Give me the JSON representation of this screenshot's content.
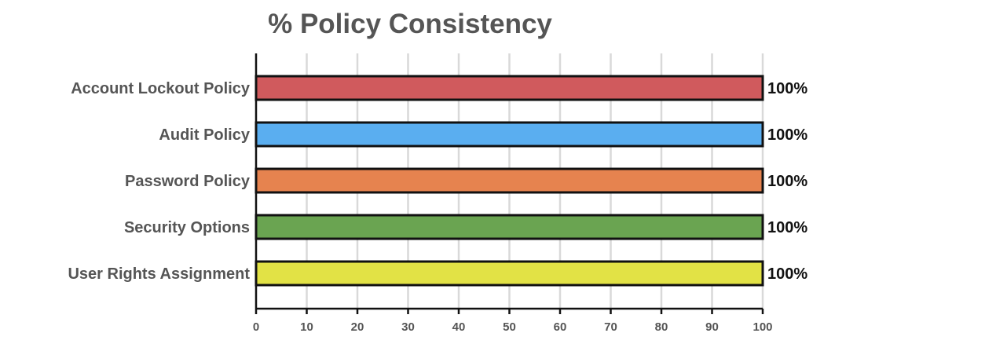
{
  "chart_data": {
    "type": "bar",
    "orientation": "horizontal",
    "title": "% Policy Consistency",
    "xlabel": "",
    "ylabel": "",
    "xlim": [
      0,
      100
    ],
    "x_ticks": [
      0,
      10,
      20,
      30,
      40,
      50,
      60,
      70,
      80,
      90,
      100
    ],
    "grid": true,
    "categories": [
      "Account Lockout Policy",
      "Audit Policy",
      "Password Policy",
      "Security Options",
      "User Rights Assignment"
    ],
    "values": [
      100,
      100,
      100,
      100,
      100
    ],
    "data_labels": [
      "100%",
      "100%",
      "100%",
      "100%",
      "100%"
    ],
    "colors": [
      "#d05a5d",
      "#5aaef0",
      "#e6834f",
      "#6aa451",
      "#e2e245"
    ]
  }
}
